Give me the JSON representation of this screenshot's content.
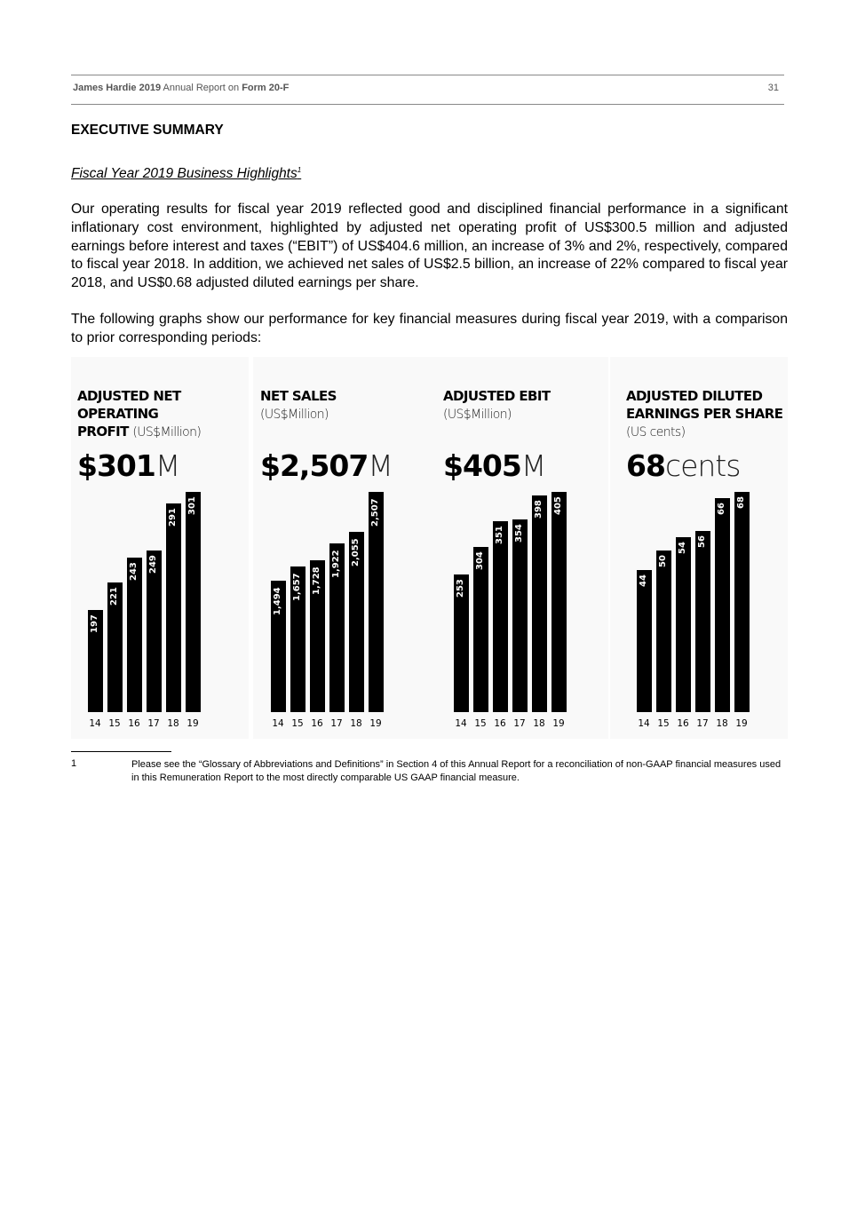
{
  "header": {
    "company": "James Hardie 2019",
    "middle": " Annual Report on ",
    "form": "Form 20-F",
    "page_number": "31"
  },
  "section_title": "EXECUTIVE SUMMARY",
  "subtitle": "Fiscal Year 2019 Business Highlights",
  "subtitle_footnote": "1",
  "paragraphs": [
    "Our operating results for fiscal year 2019 reflected good and disciplined financial performance in a significant inflationary cost environment, highlighted by adjusted net operating profit of US$300.5 million and adjusted earnings before interest and taxes (“EBIT”) of US$404.6 million, an increase of 3% and 2%, respectively, compared to fiscal year 2018.  In addition, we achieved net sales of US$2.5 billion, an increase of 22% compared to fiscal year 2018, and US$0.68 adjusted diluted earnings per share.",
    "The following graphs show our performance for key financial measures during fiscal year 2019, with a comparison to prior corresponding periods:"
  ],
  "chart_data": [
    {
      "type": "bar",
      "title": "ADJUSTED NET OPERATING PROFIT",
      "unit": "(US$Million)",
      "headline_value": "$301",
      "headline_unit": "M",
      "categories": [
        "14",
        "15",
        "16",
        "17",
        "18",
        "19"
      ],
      "values": [
        197,
        221,
        243,
        249,
        291,
        301
      ],
      "value_labels": [
        "197",
        "221",
        "243",
        "249",
        "291",
        "301"
      ],
      "ylim": [
        107,
        301
      ],
      "bar_color": "#000000"
    },
    {
      "type": "bar",
      "title": "NET SALES",
      "unit": "(US$Million)",
      "headline_value": "$2,507",
      "headline_unit": "M",
      "categories": [
        "14",
        "15",
        "16",
        "17",
        "18",
        "19"
      ],
      "values": [
        1494,
        1657,
        1728,
        1922,
        2055,
        2507
      ],
      "value_labels": [
        "1,494",
        "1,657",
        "1,728",
        "1,922",
        "2,055",
        "2,507"
      ],
      "ylim": [
        0,
        2507
      ],
      "bar_color": "#000000"
    },
    {
      "type": "bar",
      "title": "ADJUSTED EBIT",
      "unit": "(US$Million)",
      "headline_value": "$405",
      "headline_unit": "M",
      "categories": [
        "14",
        "15",
        "16",
        "17",
        "18",
        "19"
      ],
      "values": [
        253,
        304,
        351,
        354,
        398,
        405
      ],
      "value_labels": [
        "253",
        "304",
        "351",
        "354",
        "398",
        "405"
      ],
      "ylim": [
        0,
        405
      ],
      "bar_color": "#000000"
    },
    {
      "type": "bar",
      "title": "ADJUSTED DILUTED EARNINGS PER SHARE",
      "unit": "(US cents)",
      "headline_value": "68",
      "headline_unit": "cents",
      "categories": [
        "14",
        "15",
        "16",
        "17",
        "18",
        "19"
      ],
      "values": [
        44,
        50,
        54,
        56,
        66,
        68
      ],
      "value_labels": [
        "44",
        "50",
        "54",
        "56",
        "66",
        "68"
      ],
      "ylim": [
        0,
        68
      ],
      "bar_color": "#000000"
    }
  ],
  "footnote": {
    "number": "1",
    "text": "Please see the “Glossary of Abbreviations and Definitions” in Section 4 of this Annual Report for a reconciliation of non-GAAP financial measures used in this Remuneration Report to the most directly comparable US GAAP financial measure."
  }
}
